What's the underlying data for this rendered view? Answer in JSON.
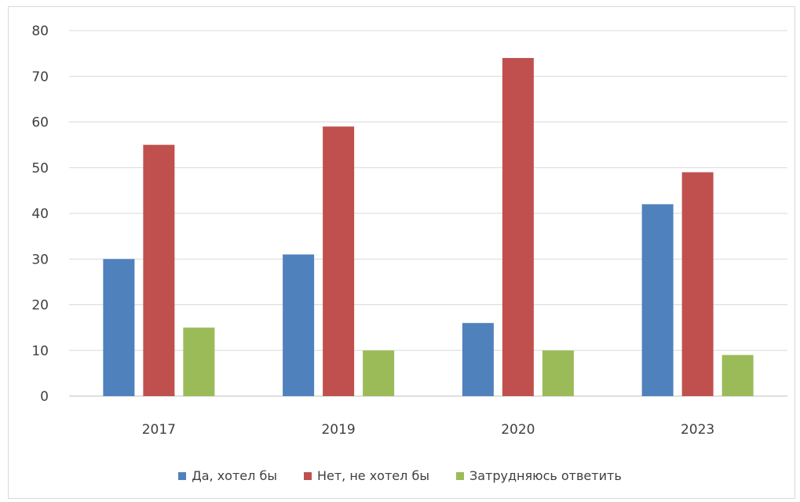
{
  "chart_data": {
    "type": "bar",
    "categories": [
      "2017",
      "2019",
      "2020",
      "2023"
    ],
    "series": [
      {
        "name": "Да, хотел бы",
        "values": [
          30,
          31,
          16,
          42
        ],
        "color": "#4f81bd"
      },
      {
        "name": "Нет, не хотел бы",
        "values": [
          55,
          59,
          74,
          49
        ],
        "color": "#c0504d"
      },
      {
        "name": "Затрудняюсь ответить",
        "values": [
          15,
          10,
          10,
          9
        ],
        "color": "#9bbb59"
      }
    ],
    "yticks": [
      "0",
      "10",
      "20",
      "30",
      "40",
      "50",
      "60",
      "70",
      "80"
    ],
    "ylim": [
      0,
      80
    ],
    "grid": true,
    "legend_position": "bottom"
  }
}
